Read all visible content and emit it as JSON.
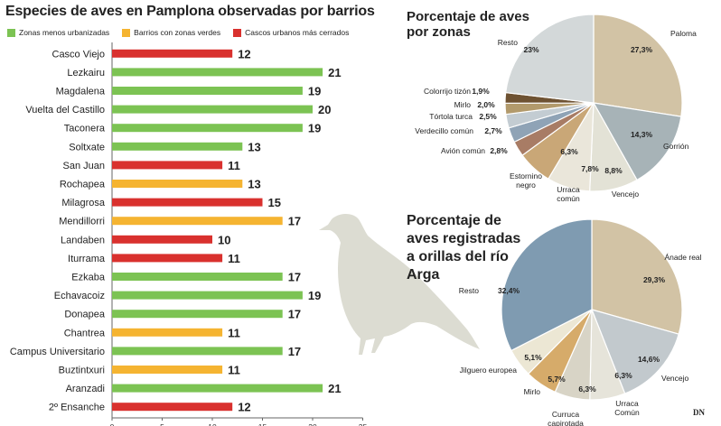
{
  "title": "Especies de aves en Pamplona observadas por barrios",
  "credit": "DN",
  "legend": [
    {
      "label": "Zonas menos urbanizadas",
      "color": "#7cc353"
    },
    {
      "label": "Barrios con zonas verdes",
      "color": "#f5b431"
    },
    {
      "label": "Cascos urbanos más cerrados",
      "color": "#d9312e"
    }
  ],
  "chart_data": [
    {
      "type": "bar",
      "orientation": "horizontal",
      "title": "Especies de aves en Pamplona observadas por barrios",
      "xlim": [
        0,
        25
      ],
      "xticks": [
        0,
        5,
        10,
        15,
        20,
        25
      ],
      "categories": [
        "Casco Viejo",
        "Lezkairu",
        "Magdalena",
        "Vuelta del Castillo",
        "Taconera",
        "Soltxate",
        "San Juan",
        "Rochapea",
        "Milagrosa",
        "Mendillorri",
        "Landaben",
        "Iturrama",
        "Ezkaba",
        "Echavacoiz",
        "Donapea",
        "Chantrea",
        "Campus Universitario",
        "Buztintxuri",
        "Aranzadi",
        "2º Ensanche"
      ],
      "values": [
        12,
        21,
        19,
        20,
        19,
        13,
        11,
        13,
        15,
        17,
        10,
        11,
        17,
        19,
        17,
        11,
        17,
        11,
        21,
        12
      ],
      "groups": [
        2,
        0,
        0,
        0,
        0,
        0,
        2,
        1,
        2,
        1,
        2,
        2,
        0,
        0,
        0,
        1,
        0,
        1,
        0,
        2
      ]
    },
    {
      "type": "pie",
      "title": "Porcentaje de aves por zonas",
      "slices": [
        {
          "label": "Paloma",
          "pct_label": "27,3%",
          "value": 27.3,
          "color": "#d2c3a5"
        },
        {
          "label": "Gorrión",
          "pct_label": "14,3%",
          "value": 14.3,
          "color": "#a7b3b7"
        },
        {
          "label": "Vencejo",
          "pct_label": "8,8%",
          "value": 8.8,
          "color": "#e3e2d6"
        },
        {
          "label": "Urraca común",
          "pct_label": "7,8%",
          "value": 7.8,
          "color": "#eae6da"
        },
        {
          "label": "Estornino negro",
          "pct_label": "6,3%",
          "value": 6.3,
          "color": "#c9a777"
        },
        {
          "label": "Avión común",
          "pct_label": "2,8%",
          "value": 2.8,
          "color": "#a87c65"
        },
        {
          "label": "Verdecillo común",
          "pct_label": "2,7%",
          "value": 2.7,
          "color": "#8fa3b6"
        },
        {
          "label": "Tórtola turca",
          "pct_label": "2,5%",
          "value": 2.5,
          "color": "#c3ccd2"
        },
        {
          "label": "Mirlo",
          "pct_label": "2,0%",
          "value": 2.0,
          "color": "#b29a6c"
        },
        {
          "label": "Colorrijo tizón",
          "pct_label": "1,9%",
          "value": 1.9,
          "color": "#6e5232"
        },
        {
          "label": "Resto",
          "pct_label": "23%",
          "value": 23.0,
          "color": "#d3d8d9"
        }
      ]
    },
    {
      "type": "pie",
      "title": "Porcentaje de aves registradas a orillas del río Arga",
      "slices": [
        {
          "label": "Ánade real",
          "pct_label": "29,3%",
          "value": 29.3,
          "color": "#d2c3a5"
        },
        {
          "label": "Vencejo",
          "pct_label": "14,6%",
          "value": 14.6,
          "color": "#c2c9cd"
        },
        {
          "label": "Urraca Común",
          "pct_label": "6,3%",
          "value": 6.3,
          "color": "#e6e4da"
        },
        {
          "label": "Curruca capirotada",
          "pct_label": "6,3%",
          "value": 6.3,
          "color": "#d8d4c6"
        },
        {
          "label": "Mirlo",
          "pct_label": "5,7%",
          "value": 5.7,
          "color": "#d6ab6a"
        },
        {
          "label": "Jilguero europea",
          "pct_label": "5,1%",
          "value": 5.1,
          "color": "#ece7d4"
        },
        {
          "label": "Resto",
          "pct_label": "32,4%",
          "value": 32.4,
          "color": "#7f9bb1"
        }
      ]
    }
  ]
}
